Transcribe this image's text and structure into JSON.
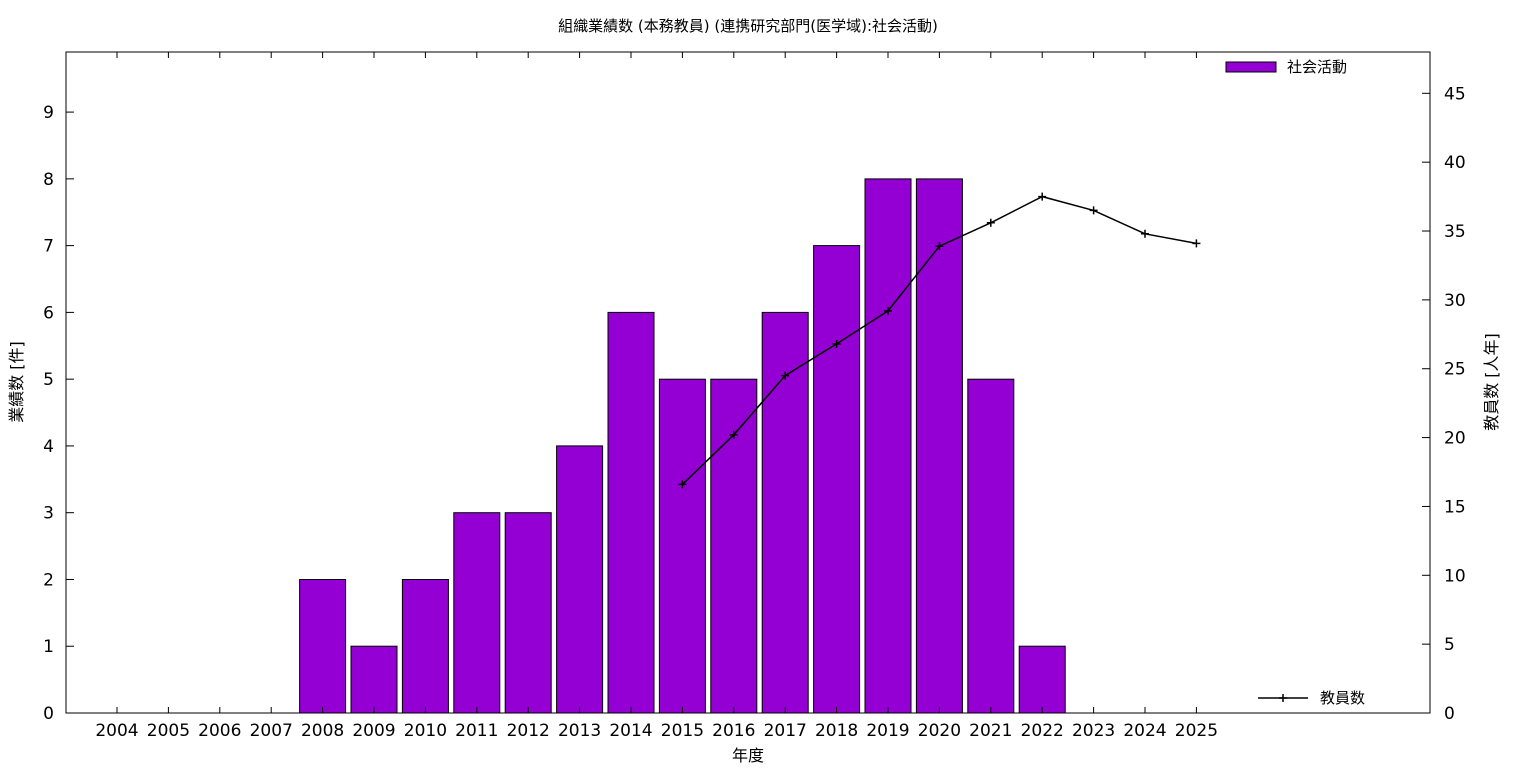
{
  "chart_data": {
    "type": "bar",
    "title": "組織業績数 (本務教員) (連携研究部門(医学域):社会活動)",
    "xlabel": "年度",
    "ylabel": "業績数 [件]",
    "y2label": "教員数 [人年]",
    "categories": [
      "2004",
      "2005",
      "2006",
      "2007",
      "2008",
      "2009",
      "2010",
      "2011",
      "2012",
      "2013",
      "2014",
      "2015",
      "2016",
      "2017",
      "2018",
      "2019",
      "2020",
      "2021",
      "2022",
      "2023",
      "2024",
      "2025"
    ],
    "ylim": [
      0,
      9.9
    ],
    "y2lim": [
      0,
      48
    ],
    "yticks": [
      0,
      1,
      2,
      3,
      4,
      5,
      6,
      7,
      8,
      9
    ],
    "y2ticks": [
      0,
      5,
      10,
      15,
      20,
      25,
      30,
      35,
      40,
      45
    ],
    "grid": false,
    "series": [
      {
        "name": "社会活動",
        "type": "bar",
        "axis": "left",
        "color": "#9400d3",
        "values": [
          0,
          0,
          0,
          0,
          2,
          1,
          2,
          3,
          3,
          4,
          6,
          5,
          5,
          6,
          7,
          8,
          8,
          5,
          1,
          0,
          0,
          0
        ]
      },
      {
        "name": "教員数",
        "type": "line",
        "axis": "right",
        "color": "#000000",
        "x": [
          "2015",
          "2016",
          "2017",
          "2018",
          "2019",
          "2020",
          "2021",
          "2022",
          "2023",
          "2024",
          "2025"
        ],
        "values": [
          16.6,
          20.2,
          24.5,
          26.8,
          29.2,
          33.9,
          35.6,
          37.5,
          36.5,
          34.8,
          34.1
        ]
      }
    ],
    "legend": [
      {
        "label": "社会活動",
        "position": "top-right"
      },
      {
        "label": "教員数",
        "position": "bottom-right"
      }
    ]
  }
}
